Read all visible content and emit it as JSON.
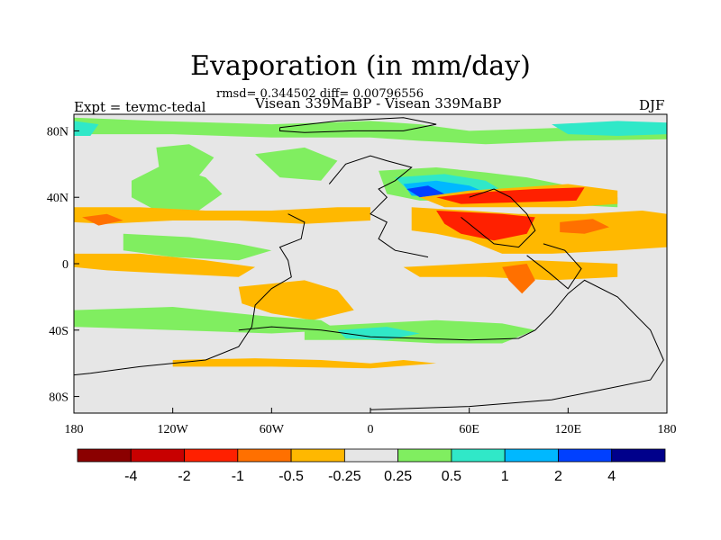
{
  "chart_data": {
    "type": "heatmap",
    "title": "Evaporation (in mm/day)",
    "subtitle": "rmsd= 0.344502 diff= 0.00796556",
    "left_label": "Expt = tevmc-tedal",
    "center_label": "Visean 339MaBP - Visean 339MaBP",
    "right_label": "DJF",
    "x_ticks": [
      {
        "value": -180,
        "label": "180"
      },
      {
        "value": -120,
        "label": "120W"
      },
      {
        "value": -60,
        "label": "60W"
      },
      {
        "value": 0,
        "label": "0"
      },
      {
        "value": 60,
        "label": "60E"
      },
      {
        "value": 120,
        "label": "120E"
      },
      {
        "value": 180,
        "label": "180"
      }
    ],
    "y_ticks": [
      {
        "value": 80,
        "label": "80N"
      },
      {
        "value": 40,
        "label": "40N"
      },
      {
        "value": 0,
        "label": "0"
      },
      {
        "value": -40,
        "label": "40S"
      },
      {
        "value": -80,
        "label": "80S"
      }
    ],
    "xlim": [
      -180,
      180
    ],
    "ylim": [
      -90,
      90
    ],
    "colorbar": {
      "colors": [
        "#8b0000",
        "#c80000",
        "#ff2000",
        "#ff7000",
        "#ffb800",
        "#e6e6e6",
        "#80ee60",
        "#30e8c8",
        "#00b8ff",
        "#0040ff",
        "#00008b"
      ],
      "labels": [
        "-4",
        "-2",
        "-1",
        "-0.5",
        "-0.25",
        "0.25",
        "0.5",
        "1",
        "2",
        "4"
      ]
    },
    "background_color": "#e6e6e6",
    "regions": [
      {
        "level": 0.5,
        "color": "#80ee60",
        "points": [
          [
            -180,
            88
          ],
          [
            -130,
            86
          ],
          [
            -60,
            84
          ],
          [
            0,
            86
          ],
          [
            30,
            84
          ],
          [
            60,
            80
          ],
          [
            120,
            82
          ],
          [
            180,
            84
          ],
          [
            180,
            75
          ],
          [
            120,
            74
          ],
          [
            70,
            72
          ],
          [
            30,
            74
          ],
          [
            0,
            76
          ],
          [
            -60,
            76
          ],
          [
            -120,
            78
          ],
          [
            -180,
            78
          ]
        ]
      },
      {
        "level": 1,
        "color": "#30e8c8",
        "points": [
          [
            -180,
            86
          ],
          [
            -165,
            84
          ],
          [
            -170,
            77
          ],
          [
            -180,
            77
          ]
        ]
      },
      {
        "level": 1,
        "color": "#30e8c8",
        "points": [
          [
            110,
            84
          ],
          [
            150,
            86
          ],
          [
            180,
            85
          ],
          [
            180,
            78
          ],
          [
            150,
            77
          ],
          [
            120,
            78
          ]
        ]
      },
      {
        "level": 0.5,
        "color": "#80ee60",
        "points": [
          [
            -130,
            70
          ],
          [
            -110,
            72
          ],
          [
            -95,
            64
          ],
          [
            -105,
            52
          ],
          [
            -120,
            48
          ],
          [
            -128,
            56
          ]
        ]
      },
      {
        "level": 0.5,
        "color": "#80ee60",
        "points": [
          [
            -145,
            50
          ],
          [
            -125,
            60
          ],
          [
            -100,
            52
          ],
          [
            -90,
            42
          ],
          [
            -110,
            28
          ],
          [
            -130,
            32
          ],
          [
            -145,
            40
          ]
        ]
      },
      {
        "level": 0.5,
        "color": "#80ee60",
        "points": [
          [
            -70,
            66
          ],
          [
            -40,
            70
          ],
          [
            -20,
            62
          ],
          [
            -30,
            50
          ],
          [
            -55,
            52
          ]
        ]
      },
      {
        "level": 0.5,
        "color": "#80ee60",
        "points": [
          [
            5,
            56
          ],
          [
            40,
            58
          ],
          [
            70,
            55
          ],
          [
            95,
            52
          ],
          [
            120,
            47
          ],
          [
            150,
            40
          ],
          [
            150,
            34
          ],
          [
            110,
            36
          ],
          [
            70,
            38
          ],
          [
            30,
            38
          ],
          [
            10,
            42
          ]
        ]
      },
      {
        "level": 1,
        "color": "#30e8c8",
        "points": [
          [
            15,
            52
          ],
          [
            45,
            54
          ],
          [
            70,
            50
          ],
          [
            80,
            44
          ],
          [
            55,
            40
          ],
          [
            25,
            42
          ]
        ]
      },
      {
        "level": 2,
        "color": "#00b8ff",
        "points": [
          [
            20,
            48
          ],
          [
            40,
            50
          ],
          [
            60,
            47
          ],
          [
            70,
            43
          ],
          [
            45,
            40
          ],
          [
            25,
            41
          ]
        ]
      },
      {
        "level": 4,
        "color": "#0040ff",
        "points": [
          [
            22,
            45
          ],
          [
            35,
            47
          ],
          [
            45,
            42
          ],
          [
            30,
            40
          ]
        ]
      },
      {
        "level": -0.25,
        "color": "#ffb800",
        "points": [
          [
            30,
            40
          ],
          [
            60,
            44
          ],
          [
            90,
            46
          ],
          [
            120,
            48
          ],
          [
            150,
            44
          ],
          [
            150,
            36
          ],
          [
            120,
            34
          ],
          [
            80,
            34
          ],
          [
            45,
            34
          ]
        ]
      },
      {
        "level": -1,
        "color": "#ff2000",
        "points": [
          [
            40,
            40
          ],
          [
            65,
            43
          ],
          [
            100,
            45
          ],
          [
            130,
            46
          ],
          [
            125,
            38
          ],
          [
            90,
            37
          ],
          [
            55,
            36
          ]
        ]
      },
      {
        "level": -0.25,
        "color": "#ffb800",
        "points": [
          [
            -180,
            34
          ],
          [
            -140,
            34
          ],
          [
            -100,
            32
          ],
          [
            -60,
            32
          ],
          [
            -20,
            34
          ],
          [
            0,
            34
          ],
          [
            0,
            26
          ],
          [
            -40,
            24
          ],
          [
            -80,
            26
          ],
          [
            -120,
            26
          ],
          [
            -160,
            24
          ],
          [
            -180,
            25
          ]
        ]
      },
      {
        "level": -0.25,
        "color": "#ffb800",
        "points": [
          [
            25,
            34
          ],
          [
            60,
            32
          ],
          [
            90,
            30
          ],
          [
            130,
            30
          ],
          [
            165,
            32
          ],
          [
            180,
            30
          ],
          [
            180,
            10
          ],
          [
            150,
            8
          ],
          [
            110,
            6
          ],
          [
            80,
            6
          ],
          [
            60,
            14
          ],
          [
            40,
            18
          ],
          [
            25,
            20
          ]
        ]
      },
      {
        "level": -1,
        "color": "#ff2000",
        "points": [
          [
            40,
            32
          ],
          [
            80,
            30
          ],
          [
            100,
            28
          ],
          [
            95,
            18
          ],
          [
            75,
            14
          ],
          [
            55,
            18
          ],
          [
            45,
            24
          ]
        ]
      },
      {
        "level": -0.5,
        "color": "#ff7000",
        "points": [
          [
            -175,
            28
          ],
          [
            -160,
            30
          ],
          [
            -150,
            26
          ],
          [
            -165,
            23
          ]
        ]
      },
      {
        "level": -0.5,
        "color": "#ff7000",
        "points": [
          [
            115,
            25
          ],
          [
            135,
            27
          ],
          [
            145,
            22
          ],
          [
            130,
            18
          ],
          [
            115,
            19
          ]
        ]
      },
      {
        "level": 0.5,
        "color": "#80ee60",
        "points": [
          [
            -150,
            18
          ],
          [
            -110,
            16
          ],
          [
            -80,
            12
          ],
          [
            -60,
            8
          ],
          [
            -80,
            2
          ],
          [
            -120,
            4
          ],
          [
            -150,
            8
          ]
        ]
      },
      {
        "level": -0.25,
        "color": "#ffb800",
        "points": [
          [
            -180,
            6
          ],
          [
            -140,
            6
          ],
          [
            -100,
            2
          ],
          [
            -70,
            -2
          ],
          [
            -80,
            -8
          ],
          [
            -120,
            -6
          ],
          [
            -160,
            -4
          ],
          [
            -180,
            -2
          ]
        ]
      },
      {
        "level": -0.25,
        "color": "#ffb800",
        "points": [
          [
            20,
            -2
          ],
          [
            60,
            0
          ],
          [
            100,
            2
          ],
          [
            150,
            0
          ],
          [
            150,
            -8
          ],
          [
            110,
            -10
          ],
          [
            70,
            -8
          ],
          [
            30,
            -8
          ]
        ]
      },
      {
        "level": -0.5,
        "color": "#ff7000",
        "points": [
          [
            80,
            -2
          ],
          [
            95,
            0
          ],
          [
            100,
            -10
          ],
          [
            92,
            -18
          ],
          [
            84,
            -10
          ]
        ]
      },
      {
        "level": -0.25,
        "color": "#ffb800",
        "points": [
          [
            -80,
            -14
          ],
          [
            -60,
            -12
          ],
          [
            -40,
            -10
          ],
          [
            -20,
            -16
          ],
          [
            -10,
            -28
          ],
          [
            -35,
            -34
          ],
          [
            -60,
            -30
          ],
          [
            -78,
            -24
          ]
        ]
      },
      {
        "level": 0.5,
        "color": "#80ee60",
        "points": [
          [
            -180,
            -28
          ],
          [
            -120,
            -26
          ],
          [
            -60,
            -32
          ],
          [
            -30,
            -34
          ],
          [
            -20,
            -40
          ],
          [
            -60,
            -42
          ],
          [
            -120,
            -40
          ],
          [
            -180,
            -38
          ]
        ]
      },
      {
        "level": 0.5,
        "color": "#80ee60",
        "points": [
          [
            -40,
            -38
          ],
          [
            0,
            -36
          ],
          [
            40,
            -34
          ],
          [
            80,
            -36
          ],
          [
            100,
            -40
          ],
          [
            80,
            -48
          ],
          [
            40,
            -48
          ],
          [
            0,
            -46
          ],
          [
            -40,
            -46
          ]
        ]
      },
      {
        "level": 1,
        "color": "#30e8c8",
        "points": [
          [
            -20,
            -40
          ],
          [
            10,
            -38
          ],
          [
            30,
            -42
          ],
          [
            10,
            -46
          ],
          [
            -15,
            -45
          ]
        ]
      },
      {
        "level": -0.25,
        "color": "#ffb800",
        "points": [
          [
            -120,
            -58
          ],
          [
            -70,
            -57
          ],
          [
            -30,
            -58
          ],
          [
            0,
            -60
          ],
          [
            20,
            -58
          ],
          [
            40,
            -60
          ],
          [
            0,
            -63
          ],
          [
            -60,
            -62
          ],
          [
            -120,
            -62
          ]
        ]
      }
    ],
    "coastlines": [
      {
        "name": "north-landmass",
        "points": [
          [
            -55,
            82
          ],
          [
            -20,
            86
          ],
          [
            20,
            88
          ],
          [
            40,
            84
          ],
          [
            20,
            80
          ],
          [
            -10,
            80
          ],
          [
            -40,
            79
          ],
          [
            -55,
            80
          ],
          [
            -55,
            82
          ]
        ]
      },
      {
        "name": "gondwana-west-coast",
        "points": [
          [
            -50,
            30
          ],
          [
            -40,
            25
          ],
          [
            -42,
            15
          ],
          [
            -55,
            10
          ],
          [
            -50,
            2
          ],
          [
            -48,
            -8
          ],
          [
            -60,
            -15
          ],
          [
            -70,
            -25
          ],
          [
            -72,
            -38
          ],
          [
            -80,
            -50
          ],
          [
            -100,
            -58
          ],
          [
            -140,
            -62
          ],
          [
            -170,
            -66
          ],
          [
            -180,
            -67
          ]
        ]
      },
      {
        "name": "gondwana-south-coast",
        "points": [
          [
            -80,
            -40
          ],
          [
            -60,
            -38
          ],
          [
            -30,
            -40
          ],
          [
            0,
            -44
          ],
          [
            30,
            -45
          ],
          [
            60,
            -46
          ],
          [
            90,
            -45
          ],
          [
            100,
            -40
          ],
          [
            110,
            -30
          ],
          [
            120,
            -18
          ],
          [
            130,
            -10
          ],
          [
            150,
            -20
          ],
          [
            170,
            -40
          ],
          [
            178,
            -58
          ],
          [
            170,
            -70
          ],
          [
            140,
            -76
          ],
          [
            110,
            -82
          ],
          [
            60,
            -86
          ],
          [
            0,
            -88
          ]
        ]
      },
      {
        "name": "euramerica-coast",
        "points": [
          [
            -25,
            48
          ],
          [
            -15,
            60
          ],
          [
            0,
            65
          ],
          [
            10,
            62
          ],
          [
            25,
            58
          ],
          [
            15,
            50
          ],
          [
            5,
            45
          ],
          [
            10,
            40
          ],
          [
            0,
            30
          ],
          [
            10,
            25
          ],
          [
            5,
            15
          ],
          [
            15,
            8
          ],
          [
            35,
            4
          ]
        ]
      },
      {
        "name": "siberia-coast",
        "points": [
          [
            60,
            40
          ],
          [
            75,
            45
          ],
          [
            85,
            40
          ],
          [
            95,
            30
          ],
          [
            100,
            20
          ],
          [
            90,
            10
          ],
          [
            75,
            12
          ],
          [
            65,
            20
          ],
          [
            55,
            28
          ]
        ]
      },
      {
        "name": "east-coast",
        "points": [
          [
            95,
            5
          ],
          [
            108,
            -5
          ],
          [
            120,
            -15
          ],
          [
            128,
            -3
          ],
          [
            118,
            8
          ],
          [
            105,
            12
          ]
        ]
      }
    ]
  }
}
